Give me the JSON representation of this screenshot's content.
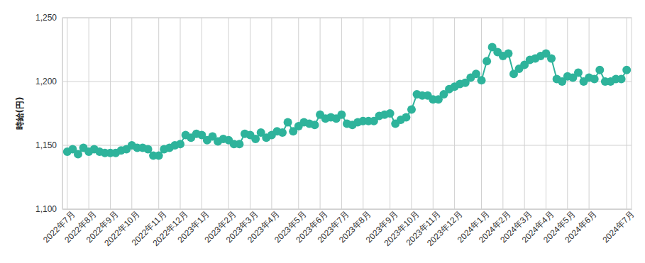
{
  "chart_data": {
    "type": "line",
    "y_label": "時給(円)",
    "categories": [
      "2022年7月",
      null,
      null,
      null,
      "2022年8月",
      null,
      null,
      null,
      "2022年9月",
      null,
      null,
      null,
      "2022年10月",
      null,
      null,
      null,
      null,
      "2022年11月",
      null,
      null,
      null,
      "2022年12月",
      null,
      null,
      null,
      "2023年1月",
      null,
      null,
      null,
      null,
      "2023年2月",
      null,
      null,
      null,
      "2023年3月",
      null,
      null,
      null,
      "2023年4月",
      null,
      null,
      null,
      null,
      "2023年5月",
      null,
      null,
      null,
      "2023年6月",
      null,
      null,
      null,
      "2023年7月",
      null,
      null,
      null,
      "2023年8月",
      null,
      null,
      null,
      null,
      "2023年9月",
      null,
      null,
      null,
      "2023年10月",
      null,
      null,
      null,
      "2023年11月",
      null,
      null,
      null,
      "2023年12月",
      null,
      null,
      null,
      null,
      "2024年1月",
      null,
      null,
      null,
      "2024年2月",
      null,
      null,
      null,
      "2024年3月",
      null,
      null,
      null,
      "2024年4月",
      null,
      null,
      null,
      "2024年5月",
      null,
      null,
      null,
      "2024年6月",
      null,
      null,
      null,
      null,
      null,
      null,
      "2024年7月"
    ],
    "values": [
      1145,
      1147,
      1143,
      1148,
      1145,
      1147,
      1145,
      1144,
      1144,
      1144,
      1146,
      1147,
      1150,
      1148,
      1148,
      1147,
      1142,
      1142,
      1147,
      1148,
      1150,
      1151,
      1158,
      1156,
      1159,
      1158,
      1154,
      1157,
      1153,
      1155,
      1154,
      1151,
      1151,
      1159,
      1158,
      1155,
      1160,
      1156,
      1158,
      1161,
      1160,
      1168,
      1161,
      1165,
      1168,
      1167,
      1166,
      1174,
      1171,
      1172,
      1171,
      1174,
      1167,
      1166,
      1168,
      1169,
      1169,
      1169,
      1173,
      1174,
      1175,
      1167,
      1170,
      1172,
      1178,
      1190,
      1189,
      1189,
      1186,
      1186,
      1190,
      1194,
      1196,
      1198,
      1199,
      1203,
      1206,
      1201,
      1216,
      1227,
      1223,
      1220,
      1222,
      1206,
      1210,
      1213,
      1217,
      1218,
      1220,
      1222,
      1218,
      1202,
      1200,
      1204,
      1203,
      1207,
      1200,
      1203,
      1202,
      1209,
      1200,
      1200,
      1202,
      1202,
      1209
    ],
    "color": "#2eb39b",
    "marker": "circle",
    "ylim": [
      1100,
      1250
    ],
    "yticks": [
      {
        "value": 1100,
        "label": "1,100"
      },
      {
        "value": 1150,
        "label": "1,150"
      },
      {
        "value": 1200,
        "label": "1,200"
      },
      {
        "value": 1250,
        "label": "1,250"
      }
    ],
    "grid": true
  }
}
